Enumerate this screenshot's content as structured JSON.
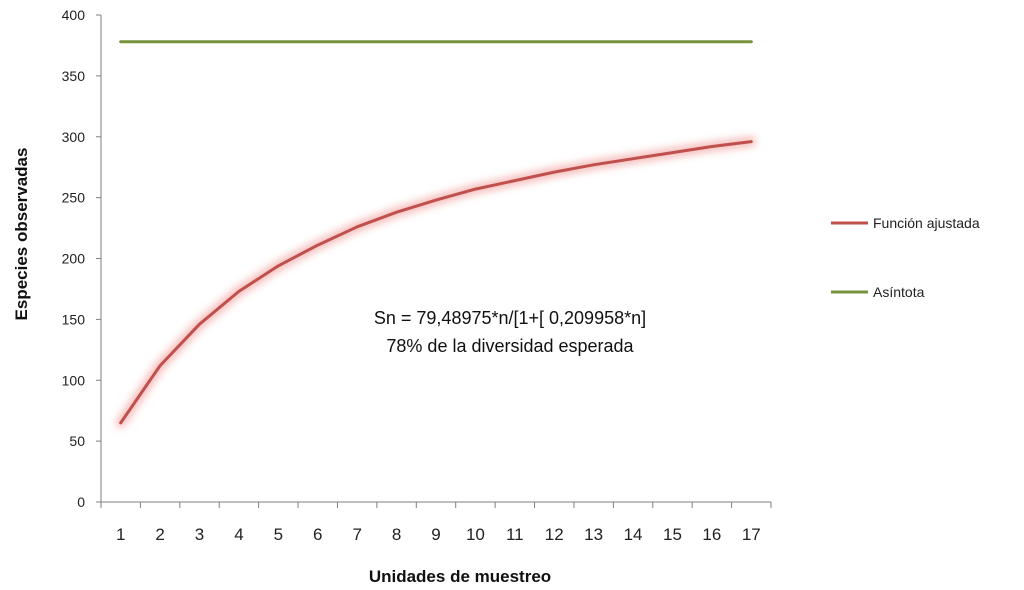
{
  "chart_data": {
    "type": "line",
    "title": "",
    "xlabel": "Unidades de muestreo",
    "ylabel": "Especies observadas",
    "x": [
      1,
      2,
      3,
      4,
      5,
      6,
      7,
      8,
      9,
      10,
      11,
      12,
      13,
      14,
      15,
      16,
      17
    ],
    "xlim": [
      0.5,
      17.5
    ],
    "ylim": [
      0,
      400
    ],
    "yticks": [
      0,
      50,
      100,
      150,
      200,
      250,
      300,
      350,
      400
    ],
    "grid": false,
    "legend_position": "right",
    "series": [
      {
        "name": "Función ajustada",
        "color": "#c0504d",
        "glow": "#f4b6b4",
        "values": [
          65,
          112,
          146,
          173,
          194,
          211,
          226,
          238,
          248,
          257,
          264,
          271,
          277,
          282,
          287,
          292,
          296
        ]
      },
      {
        "name": "Asíntota",
        "color": "#77933c",
        "glow": "#d4e8b0",
        "values": [
          378,
          378,
          378,
          378,
          378,
          378,
          378,
          378,
          378,
          378,
          378,
          378,
          378,
          378,
          378,
          378,
          378
        ]
      }
    ],
    "annotations": [
      "Sn = 79,48975*n/[1+[ 0,209958*n]",
      "78% de la diversidad esperada"
    ]
  }
}
